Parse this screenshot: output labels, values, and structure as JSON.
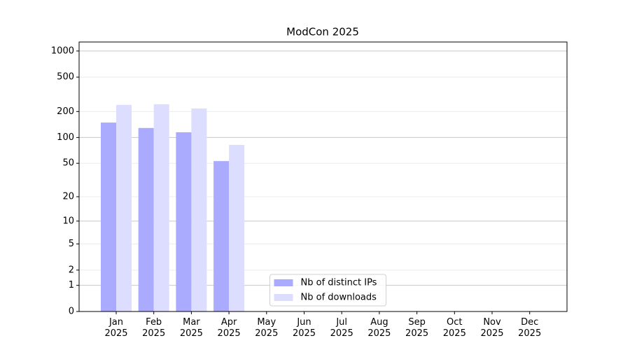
{
  "chart_data": {
    "type": "bar",
    "title": "ModCon 2025",
    "categories": [
      "Jan\n2025",
      "Feb\n2025",
      "Mar\n2025",
      "Apr\n2025",
      "May\n2025",
      "Jun\n2025",
      "Jul\n2025",
      "Aug\n2025",
      "Sep\n2025",
      "Oct\n2025",
      "Nov\n2025",
      "Dec\n2025"
    ],
    "series": [
      {
        "name": "Nb of distinct IPs",
        "color": "#aaaaff",
        "values": [
          149,
          129,
          115,
          53,
          0,
          0,
          0,
          0,
          0,
          0,
          0,
          0
        ]
      },
      {
        "name": "Nb of downloads",
        "color": "#ddddff",
        "values": [
          239,
          243,
          217,
          82,
          0,
          0,
          0,
          0,
          0,
          0,
          0,
          0
        ]
      }
    ],
    "yscale": "log1p",
    "ylim": [
      0,
      1270
    ],
    "yticks": [
      0,
      1,
      2,
      5,
      10,
      20,
      50,
      100,
      200,
      500,
      1000
    ],
    "grid": true,
    "legend": "lower center"
  }
}
